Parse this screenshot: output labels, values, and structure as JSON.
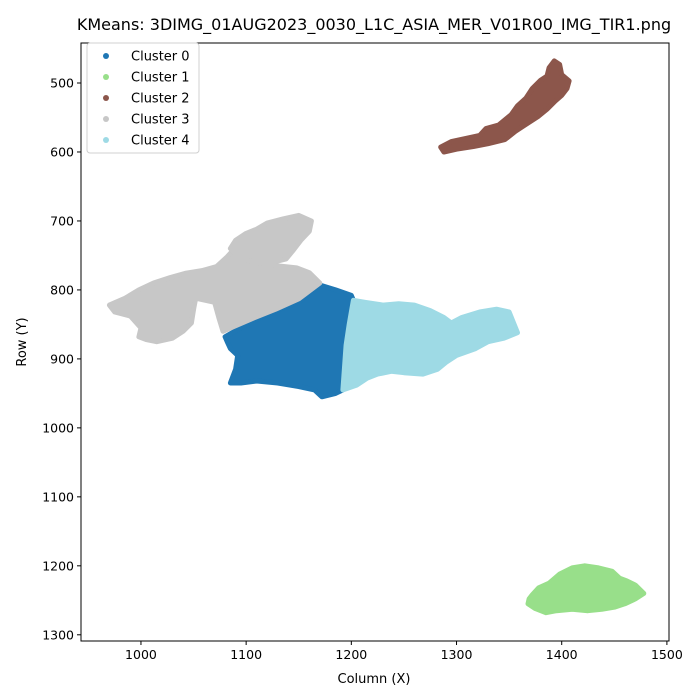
{
  "chart_data": {
    "type": "scatter",
    "title": "KMeans: 3DIMG_01AUG2023_0030_L1C_ASIA_MER_V01R00_IMG_TIR1.png",
    "xlabel": "Column (X)",
    "ylabel": "Row (Y)",
    "xlim": [
      943,
      1502
    ],
    "ylim": [
      1309,
      442
    ],
    "y_inverted": true,
    "grid": false,
    "legend": "top-left",
    "x_ticks": [
      1000,
      1100,
      1200,
      1300,
      1400,
      1500
    ],
    "y_ticks": [
      500,
      600,
      700,
      800,
      900,
      1000,
      1100,
      1200,
      1300
    ],
    "series": [
      {
        "name": "Cluster 0",
        "color": "#1f77b4",
        "regions": [
          [
            [
              1080,
              868
            ],
            [
              1105,
              846
            ],
            [
              1125,
              832
            ],
            [
              1150,
              818
            ],
            [
              1168,
              792
            ],
            [
              1185,
              800
            ],
            [
              1200,
              808
            ],
            [
              1202,
              815
            ],
            [
              1198,
              850
            ],
            [
              1195,
              880
            ],
            [
              1192,
              945
            ],
            [
              1185,
              950
            ],
            [
              1172,
              955
            ],
            [
              1165,
              945
            ],
            [
              1150,
              940
            ],
            [
              1130,
              935
            ],
            [
              1110,
              932
            ],
            [
              1095,
              935
            ],
            [
              1085,
              935
            ],
            [
              1090,
              915
            ],
            [
              1092,
              895
            ],
            [
              1085,
              885
            ],
            [
              1082,
              875
            ]
          ]
        ]
      },
      {
        "name": "Cluster 1",
        "color": "#98df8a",
        "regions": [
          [
            [
              1372,
              1242
            ],
            [
              1378,
              1232
            ],
            [
              1388,
              1225
            ],
            [
              1398,
              1212
            ],
            [
              1410,
              1203
            ],
            [
              1422,
              1200
            ],
            [
              1435,
              1203
            ],
            [
              1448,
              1208
            ],
            [
              1455,
              1218
            ],
            [
              1462,
              1222
            ],
            [
              1470,
              1228
            ],
            [
              1478,
              1240
            ],
            [
              1470,
              1248
            ],
            [
              1460,
              1255
            ],
            [
              1450,
              1260
            ],
            [
              1438,
              1263
            ],
            [
              1425,
              1265
            ],
            [
              1410,
              1263
            ],
            [
              1395,
              1265
            ],
            [
              1385,
              1268
            ],
            [
              1375,
              1262
            ],
            [
              1368,
              1255
            ],
            [
              1369,
              1248
            ]
          ]
        ]
      },
      {
        "name": "Cluster 2",
        "color": "#8c564b",
        "regions": [
          [
            [
              1285,
              593
            ],
            [
              1295,
              585
            ],
            [
              1310,
              580
            ],
            [
              1322,
              576
            ],
            [
              1328,
              566
            ],
            [
              1340,
              561
            ],
            [
              1352,
              546
            ],
            [
              1358,
              533
            ],
            [
              1366,
              522
            ],
            [
              1372,
              508
            ],
            [
              1380,
              496
            ],
            [
              1386,
              490
            ],
            [
              1388,
              478
            ],
            [
              1393,
              468
            ],
            [
              1398,
              473
            ],
            [
              1400,
              488
            ],
            [
              1407,
              497
            ],
            [
              1405,
              508
            ],
            [
              1400,
              518
            ],
            [
              1394,
              526
            ],
            [
              1386,
              538
            ],
            [
              1378,
              548
            ],
            [
              1368,
              558
            ],
            [
              1356,
              570
            ],
            [
              1346,
              582
            ],
            [
              1330,
              588
            ],
            [
              1316,
              592
            ],
            [
              1300,
              596
            ],
            [
              1288,
              600
            ]
          ]
        ]
      },
      {
        "name": "Cluster 3",
        "color": "#c7c7c7",
        "regions": [
          [
            [
              970,
              822
            ],
            [
              985,
              812
            ],
            [
              998,
              800
            ],
            [
              1012,
              790
            ],
            [
              1028,
              782
            ],
            [
              1042,
              776
            ],
            [
              1058,
              772
            ],
            [
              1072,
              766
            ],
            [
              1082,
              752
            ],
            [
              1088,
              742
            ],
            [
              1098,
              752
            ],
            [
              1110,
              760
            ],
            [
              1130,
              765
            ],
            [
              1148,
              768
            ],
            [
              1160,
              775
            ],
            [
              1170,
              790
            ],
            [
              1150,
              813
            ],
            [
              1128,
              828
            ],
            [
              1105,
              842
            ],
            [
              1085,
              855
            ],
            [
              1078,
              860
            ],
            [
              1074,
              840
            ],
            [
              1070,
              818
            ],
            [
              1052,
              812
            ],
            [
              1050,
              828
            ],
            [
              1048,
              848
            ],
            [
              1040,
              860
            ],
            [
              1030,
              870
            ],
            [
              1015,
              875
            ],
            [
              1005,
              872
            ],
            [
              998,
              868
            ],
            [
              1000,
              855
            ],
            [
              990,
              838
            ],
            [
              975,
              832
            ]
          ],
          [
            [
              1085,
              740
            ],
            [
              1090,
              728
            ],
            [
              1100,
              718
            ],
            [
              1110,
              712
            ],
            [
              1120,
              703
            ],
            [
              1135,
              697
            ],
            [
              1150,
              692
            ],
            [
              1162,
              700
            ],
            [
              1160,
              715
            ],
            [
              1152,
              728
            ],
            [
              1145,
              742
            ],
            [
              1138,
              755
            ],
            [
              1125,
              760
            ],
            [
              1110,
              760
            ],
            [
              1095,
              755
            ]
          ]
        ]
      },
      {
        "name": "Cluster 4",
        "color": "#9edae5",
        "regions": [
          [
            [
              1202,
              815
            ],
            [
              1213,
              818
            ],
            [
              1230,
              822
            ],
            [
              1245,
              820
            ],
            [
              1260,
              822
            ],
            [
              1275,
              830
            ],
            [
              1288,
              840
            ],
            [
              1295,
              848
            ],
            [
              1305,
              840
            ],
            [
              1322,
              832
            ],
            [
              1338,
              828
            ],
            [
              1350,
              832
            ],
            [
              1358,
              862
            ],
            [
              1345,
              870
            ],
            [
              1330,
              875
            ],
            [
              1318,
              885
            ],
            [
              1300,
              895
            ],
            [
              1290,
              905
            ],
            [
              1282,
              915
            ],
            [
              1268,
              922
            ],
            [
              1250,
              920
            ],
            [
              1238,
              918
            ],
            [
              1225,
              922
            ],
            [
              1215,
              928
            ],
            [
              1205,
              938
            ],
            [
              1192,
              945
            ],
            [
              1195,
              880
            ],
            [
              1198,
              850
            ]
          ]
        ]
      }
    ]
  }
}
